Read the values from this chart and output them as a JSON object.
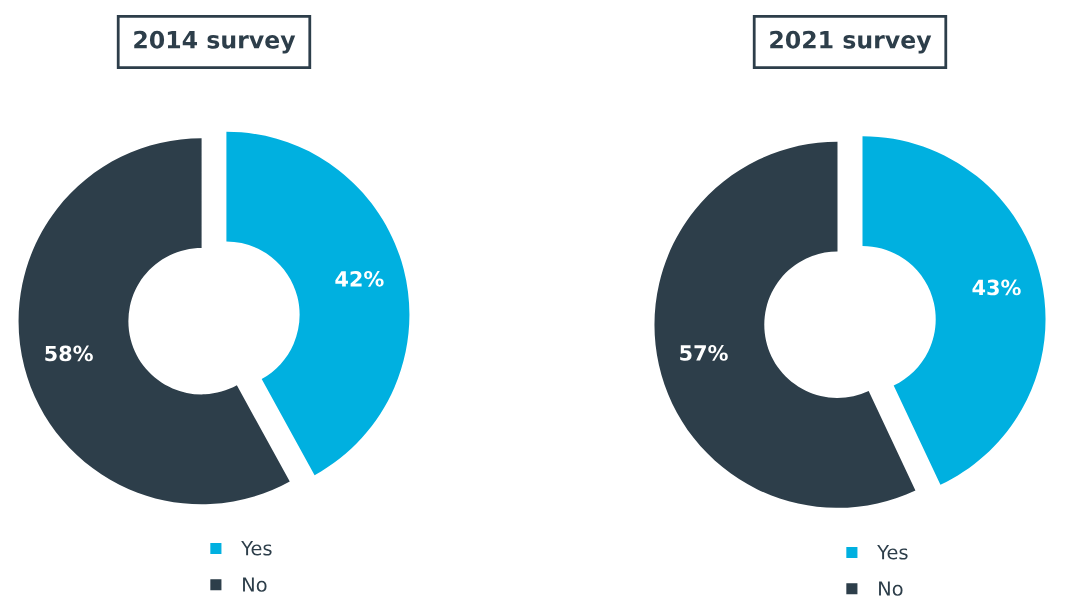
{
  "chart_data": [
    {
      "type": "donut",
      "title": "2014 survey",
      "categories": [
        "Yes",
        "No"
      ],
      "values": [
        42,
        58
      ],
      "colors": [
        "#00b0e0",
        "#2d3e4a"
      ],
      "value_labels": [
        "42%",
        "58%"
      ],
      "legend": "bottom"
    },
    {
      "type": "donut",
      "title": "2021 survey",
      "categories": [
        "Yes",
        "No"
      ],
      "values": [
        43,
        57
      ],
      "colors": [
        "#00b0e0",
        "#2d3e4a"
      ],
      "value_labels": [
        "43%",
        "57%"
      ],
      "legend": "bottom"
    }
  ]
}
